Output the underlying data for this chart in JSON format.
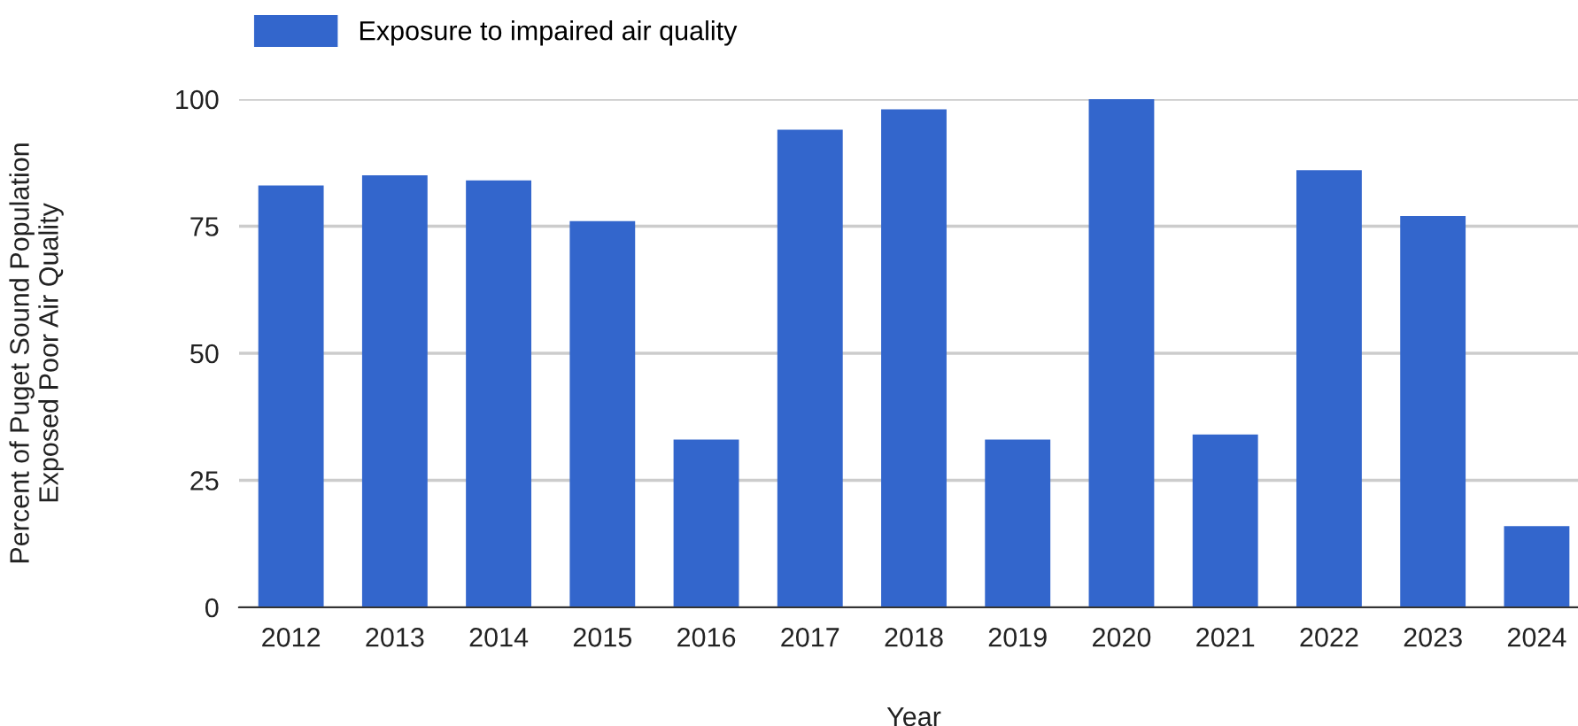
{
  "chart_data": {
    "type": "bar",
    "xlabel": "Year",
    "ylabel": "Percent of Puget Sound Population\nExposed Poor Air Quality",
    "categories": [
      "2012",
      "2013",
      "2014",
      "2015",
      "2016",
      "2017",
      "2018",
      "2019",
      "2020",
      "2021",
      "2022",
      "2023",
      "2024"
    ],
    "series": [
      {
        "name": "Exposure to impaired air quality",
        "color": "#3366cc",
        "values": [
          83,
          85,
          84,
          76,
          33,
          94,
          98,
          33,
          100,
          34,
          86,
          77,
          16
        ]
      }
    ],
    "ylim": [
      0,
      100
    ],
    "yticks": [
      0,
      25,
      50,
      75,
      100
    ],
    "grid": "y",
    "legend": "top left"
  }
}
